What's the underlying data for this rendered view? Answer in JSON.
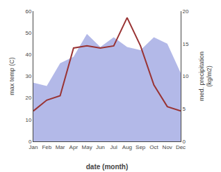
{
  "chart_data": {
    "type": "line",
    "categories": [
      "Jan",
      "Feb",
      "Mar",
      "Apr",
      "May",
      "Jun",
      "Jul",
      "Aug",
      "Sep",
      "Oct",
      "Nov",
      "Dec"
    ],
    "series": [
      {
        "type": "area",
        "axis": "y2",
        "color": "#b3b9e8",
        "values": [
          9,
          8.5,
          12,
          13,
          16.5,
          14.5,
          16,
          14.5,
          14,
          16,
          15,
          10.5
        ]
      },
      {
        "type": "line",
        "color": "#993333",
        "values": [
          14,
          19,
          21,
          43,
          44,
          43,
          44,
          57,
          44,
          26,
          16,
          14
        ]
      }
    ],
    "xlabel": "date (month)",
    "ylabel": "max temp (C)",
    "y2label": "med. precipitation\n(kg/m2)",
    "ylim": [
      0,
      60
    ],
    "yticks": [
      0,
      10,
      20,
      30,
      40,
      50,
      60
    ],
    "y2lim": [
      0,
      20
    ],
    "y2ticks": [
      0,
      5,
      10,
      15,
      20
    ],
    "grid": false
  }
}
